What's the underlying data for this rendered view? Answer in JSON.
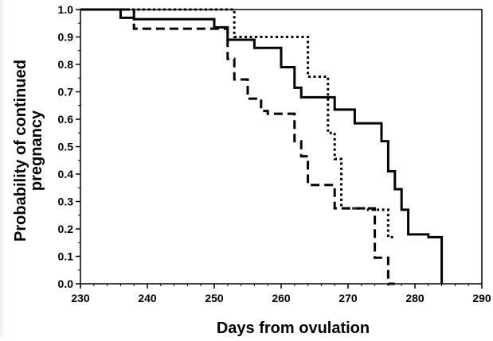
{
  "chart_data": {
    "type": "line",
    "step": true,
    "title": "",
    "xlabel": "Days from ovulation",
    "ylabel": "Probability of continued pregnancy",
    "xlim": [
      230,
      290
    ],
    "ylim": [
      0.0,
      1.0
    ],
    "x_ticks": [
      "230",
      "240",
      "250",
      "260",
      "270",
      "280",
      "290"
    ],
    "y_ticks": [
      "0.0",
      "0.1",
      "0.2",
      "0.3",
      "0.4",
      "0.5",
      "0.6",
      "0.7",
      "0.8",
      "0.9",
      "1.0"
    ],
    "legend": "none",
    "grid": false,
    "series": [
      {
        "style": "solid",
        "x": [
          230,
          236,
          238,
          250,
          252,
          256,
          260,
          262,
          263,
          268,
          271,
          275,
          276,
          277,
          278,
          279,
          282,
          284,
          284
        ],
        "y": [
          1.0,
          0.97,
          0.965,
          0.935,
          0.89,
          0.86,
          0.79,
          0.715,
          0.68,
          0.635,
          0.585,
          0.52,
          0.41,
          0.345,
          0.27,
          0.18,
          0.17,
          0.17,
          0.0
        ]
      },
      {
        "style": "dotted",
        "x": [
          230,
          252,
          253,
          264,
          267,
          268,
          269,
          273,
          276,
          277
        ],
        "y": [
          1.0,
          1.0,
          0.9,
          0.755,
          0.55,
          0.455,
          0.275,
          0.27,
          0.17,
          0.17
        ]
      },
      {
        "style": "dashed",
        "x": [
          230,
          236,
          238,
          252,
          253,
          255,
          257,
          258,
          262,
          263,
          264,
          268,
          274,
          276,
          277
        ],
        "y": [
          1.0,
          1.0,
          0.93,
          0.82,
          0.745,
          0.675,
          0.63,
          0.62,
          0.52,
          0.465,
          0.36,
          0.275,
          0.095,
          0.0,
          0.0
        ]
      }
    ]
  }
}
